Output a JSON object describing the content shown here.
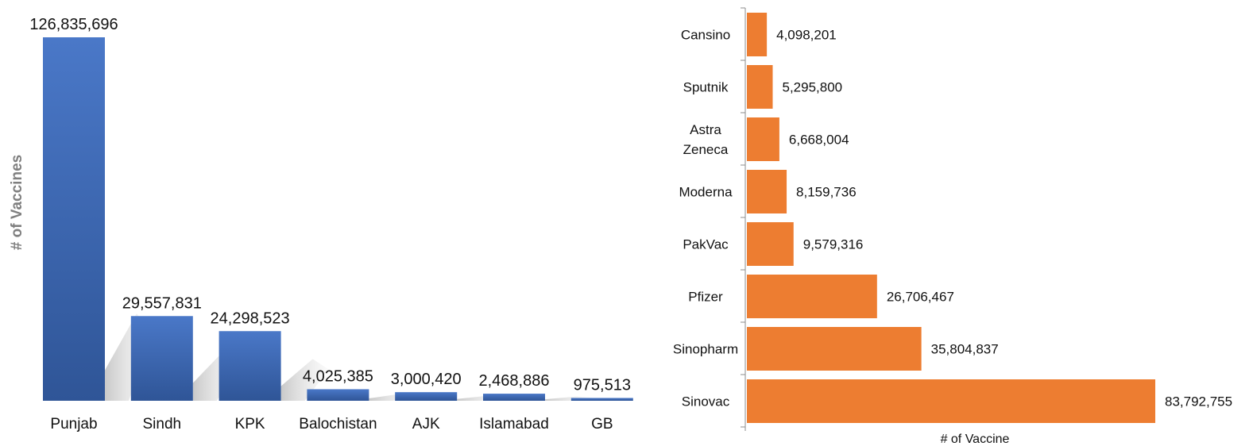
{
  "chart_data": [
    {
      "type": "bar",
      "title": "",
      "xlabel": "",
      "ylabel": "# of Vaccines",
      "categories": [
        "Punjab",
        "Sindh",
        "KPK",
        "Balochistan",
        "AJK",
        "Islamabad",
        "GB"
      ],
      "values": [
        126835696,
        29557831,
        24298523,
        4025385,
        3000420,
        2468886,
        975513
      ],
      "value_labels": [
        "126,835,696",
        "29,557,831",
        "24,298,523",
        "4,025,385",
        "3,000,420",
        "2,468,886",
        "975,513"
      ],
      "ylim": [
        0,
        126835696
      ],
      "grid": false,
      "bar_color": "#4472C4"
    },
    {
      "type": "bar",
      "orientation": "horizontal",
      "title": "",
      "xlabel": "# of Vaccine",
      "ylabel": "",
      "categories": [
        "Cansino",
        "Sputnik",
        "Astra Zeneca",
        "Moderna",
        "PakVac",
        "Pfizer",
        "Sinopharm",
        "Sinovac"
      ],
      "category_lines": [
        [
          "Cansino"
        ],
        [
          "Sputnik"
        ],
        [
          "Astra",
          "Zeneca"
        ],
        [
          "Moderna"
        ],
        [
          "PakVac"
        ],
        [
          "Pfizer"
        ],
        [
          "Sinopharm"
        ],
        [
          "Sinovac"
        ]
      ],
      "values": [
        4098201,
        5295800,
        6668004,
        8159736,
        9579316,
        26706467,
        35804837,
        83792755
      ],
      "value_labels": [
        "4,098,201",
        "5,295,800",
        "6,668,004",
        "8,159,736",
        "9,579,316",
        "26,706,467",
        "35,804,837",
        "83,792,755"
      ],
      "xlim": [
        0,
        83792755
      ],
      "grid": false,
      "bar_color": "#ED7D31"
    }
  ]
}
